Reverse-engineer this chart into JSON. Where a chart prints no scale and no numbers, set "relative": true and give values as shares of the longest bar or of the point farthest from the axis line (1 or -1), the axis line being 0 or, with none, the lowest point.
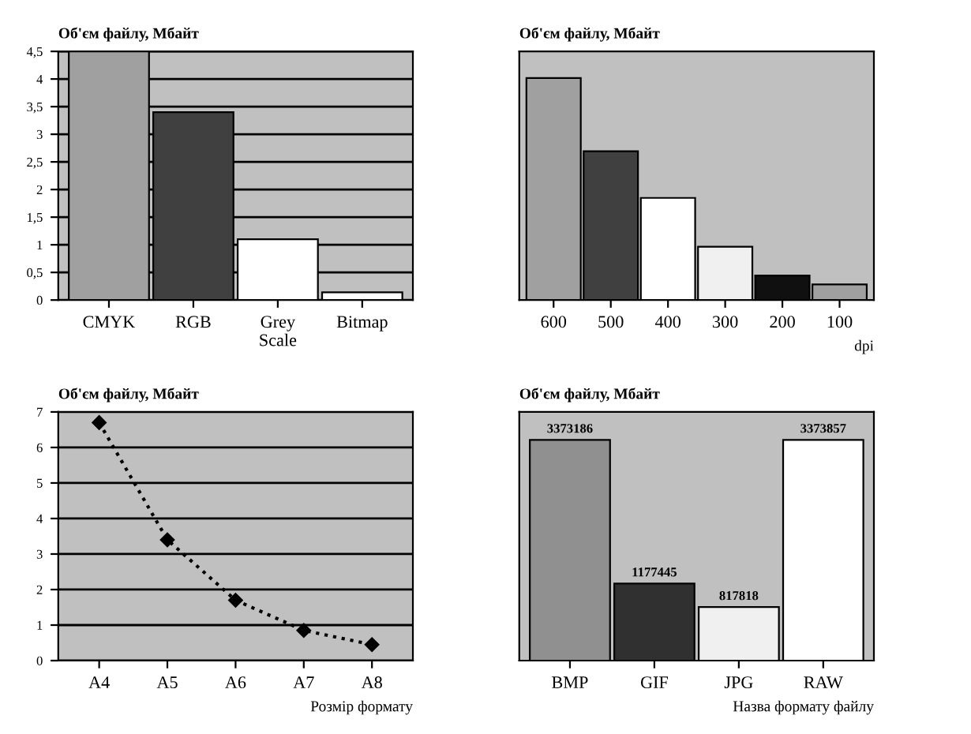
{
  "chart_data": [
    {
      "type": "bar",
      "title": "Об'єм файлу, Мбайт",
      "categories": [
        "CMYK",
        "RGB",
        "Grey\nScale",
        "Bitmap"
      ],
      "values": [
        4.5,
        3.4,
        1.1,
        0.14
      ],
      "colors": [
        "#a0a0a0",
        "#404040",
        "#ffffff",
        "#ffffff"
      ],
      "ylim": [
        0,
        4.5
      ],
      "yticks": [
        0,
        {
          "value": 0.5,
          "label": "0,5"
        },
        1,
        {
          "value": 1.5,
          "label": "1,5"
        },
        2,
        {
          "value": 2.5,
          "label": "2,5"
        },
        3,
        {
          "value": 3.5,
          "label": "3,5"
        },
        4,
        {
          "value": 4.5,
          "label": "4,5"
        }
      ],
      "grid": "y"
    },
    {
      "type": "bar",
      "title": "Об'єм файлу, Мбайт",
      "xlabel": "dpi",
      "categories": [
        "600",
        "500",
        "400",
        "300",
        "200",
        "100"
      ],
      "values": [
        1,
        0.67,
        0.46,
        0.24,
        0.11,
        0.07
      ],
      "relative": true,
      "colors": [
        "#a0a0a0",
        "#404040",
        "#ffffff",
        "#f0f0f0",
        "#101010",
        "#a0a0a0"
      ],
      "grid": "y"
    },
    {
      "type": "line",
      "title": "Об'єм файлу, Мбайт",
      "xlabel": "Розмір формату",
      "categories": [
        "A4",
        "A5",
        "A6",
        "A7",
        "A8"
      ],
      "values": [
        6.7,
        3.4,
        1.7,
        0.85,
        0.45
      ],
      "color": "#000000",
      "marker": "diamond",
      "line_style": "dotted",
      "ylim": [
        0,
        7
      ],
      "yticks": [
        0,
        1,
        2,
        3,
        4,
        5,
        6,
        7
      ],
      "grid": "y"
    },
    {
      "type": "bar",
      "title": "Об'єм файлу, Мбайт",
      "xlabel": "Назва формату файлу",
      "categories": [
        "BMP",
        "GIF",
        "JPG",
        "RAW"
      ],
      "values": [
        3373186,
        1177445,
        817818,
        3373857
      ],
      "colors": [
        "#909090",
        "#303030",
        "#f0f0f0",
        "#ffffff"
      ],
      "data_labels": true,
      "ylim": [
        0,
        3800000
      ],
      "tick_labels": "x"
    }
  ]
}
